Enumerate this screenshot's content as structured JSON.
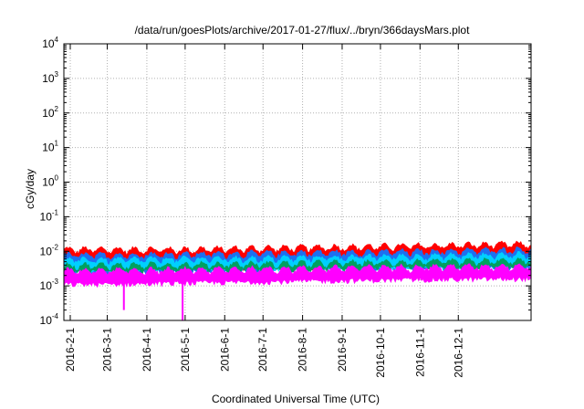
{
  "chart_data": {
    "type": "area",
    "title": "/data/run/goesPlots/archive/2017-01-27/flux/../bryn/366daysMars.plot",
    "xlabel": "Coordinated Universal Time (UTC)",
    "ylabel": "cGy/day",
    "y_scale": "log",
    "ylim_exp": [
      -4,
      4
    ],
    "y_tick_exponents": [
      -4,
      -3,
      -2,
      -1,
      0,
      1,
      2,
      3,
      4
    ],
    "xlim": [
      "2016-01-27",
      "2017-01-27"
    ],
    "x_tick_labels": [
      "2016-2-1",
      "2016-3-1",
      "2016-4-1",
      "2016-5-1",
      "2016-6-1",
      "2016-7-1",
      "2016-8-1",
      "2016-9-1",
      "2016-10-1",
      "2016-11-1",
      "2016-12-1"
    ],
    "x_tick_dates": [
      "2016-02-01",
      "2016-03-01",
      "2016-04-01",
      "2016-05-01",
      "2016-06-01",
      "2016-07-01",
      "2016-08-01",
      "2016-09-01",
      "2016-10-01",
      "2016-11-01",
      "2016-12-01"
    ],
    "grid": true,
    "series": [
      {
        "color": "#ff0000",
        "x": [
          "2016-01-27",
          "2016-03-01",
          "2016-05-01",
          "2016-07-01",
          "2016-09-01",
          "2016-11-01",
          "2017-01-27"
        ],
        "upper": [
          0.011,
          0.011,
          0.011,
          0.012,
          0.013,
          0.014,
          0.016
        ],
        "lower": [
          0.003,
          0.003,
          0.003,
          0.0032,
          0.0035,
          0.0037,
          0.004
        ]
      },
      {
        "color": "#1e6ff0",
        "x": [
          "2016-01-27",
          "2016-03-01",
          "2016-05-01",
          "2016-07-01",
          "2016-09-01",
          "2016-11-01",
          "2017-01-27"
        ],
        "upper": [
          0.0075,
          0.0075,
          0.008,
          0.0085,
          0.009,
          0.0095,
          0.011
        ],
        "lower": [
          0.0025,
          0.0025,
          0.0026,
          0.0028,
          0.003,
          0.0032,
          0.0034
        ]
      },
      {
        "color": "#00d0ff",
        "x": [
          "2016-01-27",
          "2016-03-01",
          "2016-05-01",
          "2016-07-01",
          "2016-09-01",
          "2016-11-01",
          "2017-01-27"
        ],
        "upper": [
          0.0055,
          0.0055,
          0.0058,
          0.006,
          0.0065,
          0.007,
          0.0078
        ],
        "lower": [
          0.0028,
          0.0028,
          0.003,
          0.0031,
          0.0033,
          0.0035,
          0.0038
        ]
      },
      {
        "color": "#00a060",
        "x": [
          "2016-01-27",
          "2016-03-01",
          "2016-05-01",
          "2016-07-01",
          "2016-09-01",
          "2016-11-01",
          "2017-01-27"
        ],
        "upper": [
          0.0038,
          0.0038,
          0.004,
          0.0042,
          0.0045,
          0.0048,
          0.0052
        ],
        "lower": [
          0.0026,
          0.0026,
          0.0027,
          0.0029,
          0.0031,
          0.0033,
          0.0035
        ]
      },
      {
        "color": "#ff00ff",
        "x": [
          "2016-01-27",
          "2016-03-01",
          "2016-05-01",
          "2016-07-01",
          "2016-09-01",
          "2016-11-01",
          "2017-01-27"
        ],
        "upper": [
          0.0027,
          0.0027,
          0.0028,
          0.003,
          0.0032,
          0.0034,
          0.0037
        ],
        "lower": [
          0.0011,
          0.0011,
          0.0012,
          0.0013,
          0.0014,
          0.0015,
          0.0016
        ]
      }
    ],
    "dips": [
      {
        "x": "2016-03-14",
        "value": 0.0002,
        "color": "#ff00ff"
      },
      {
        "x": "2016-04-29",
        "value": 0.0001,
        "color": "#ff00ff"
      }
    ]
  }
}
